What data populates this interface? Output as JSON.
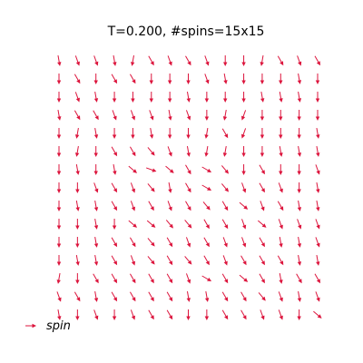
{
  "chart_data": {
    "type": "quiver",
    "title": "T=0.200, #spins=15x15",
    "grid": false,
    "legend": {
      "label": "spin",
      "placement": "bottom-left"
    },
    "colors": {
      "arrow": "#dc143c"
    },
    "lattice": {
      "rows": 15,
      "cols": 15
    },
    "spin_angles_deg": [
      [
        80,
        70,
        70,
        80,
        100,
        60,
        70,
        60,
        70,
        90,
        90,
        100,
        60,
        70,
        60
      ],
      [
        90,
        60,
        90,
        60,
        60,
        90,
        90,
        90,
        70,
        80,
        90,
        90,
        90,
        80,
        90
      ],
      [
        90,
        70,
        80,
        90,
        90,
        90,
        90,
        80,
        90,
        90,
        90,
        80,
        80,
        80,
        90
      ],
      [
        80,
        60,
        60,
        70,
        70,
        70,
        80,
        70,
        90,
        100,
        110,
        90,
        90,
        90,
        90
      ],
      [
        90,
        100,
        80,
        90,
        90,
        80,
        90,
        90,
        100,
        60,
        110,
        90,
        90,
        90,
        80
      ],
      [
        90,
        100,
        90,
        60,
        60,
        50,
        70,
        80,
        100,
        100,
        90,
        90,
        80,
        80,
        80
      ],
      [
        90,
        80,
        90,
        80,
        40,
        20,
        40,
        60,
        30,
        50,
        90,
        60,
        90,
        90,
        70
      ],
      [
        90,
        90,
        70,
        60,
        70,
        50,
        80,
        60,
        30,
        50,
        70,
        60,
        70,
        90,
        80
      ],
      [
        90,
        80,
        80,
        60,
        70,
        60,
        70,
        60,
        50,
        60,
        40,
        70,
        60,
        80,
        80
      ],
      [
        90,
        90,
        80,
        90,
        40,
        40,
        50,
        50,
        60,
        60,
        70,
        40,
        70,
        70,
        70
      ],
      [
        90,
        90,
        80,
        60,
        60,
        50,
        60,
        70,
        60,
        70,
        70,
        60,
        80,
        80,
        70
      ],
      [
        90,
        80,
        80,
        60,
        70,
        50,
        60,
        50,
        60,
        70,
        60,
        60,
        60,
        80,
        80
      ],
      [
        100,
        90,
        60,
        60,
        60,
        60,
        60,
        70,
        30,
        60,
        40,
        60,
        80,
        60,
        60
      ],
      [
        70,
        60,
        80,
        60,
        60,
        60,
        60,
        80,
        80,
        60,
        60,
        50,
        70,
        80,
        70
      ],
      [
        80,
        90,
        70,
        90,
        70,
        60,
        60,
        90,
        90,
        60,
        60,
        70,
        70,
        90,
        40
      ]
    ]
  }
}
